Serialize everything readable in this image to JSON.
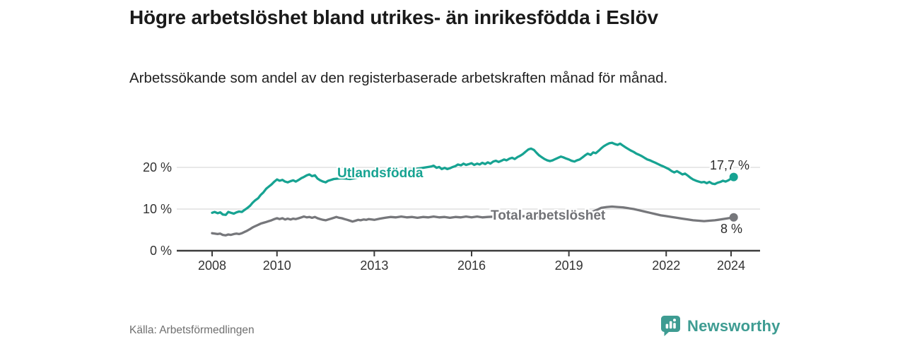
{
  "header": {
    "title": "Högre arbetslöshet bland utrikes- än inrikesfödda i Eslöv",
    "subtitle": "Arbetssökande som andel av den registerbaserade arbetskraften månad för månad."
  },
  "footer": {
    "source": "Källa: Arbetsförmedlingen",
    "brand_name": "Newsworthy",
    "brand_icon": "bar-chart-speech-bubble-icon"
  },
  "colors": {
    "foreign_born_line": "#17a392",
    "total_line": "#76777b",
    "grid": "#d9d9d9",
    "axis": "#3c3c3c",
    "tick_text": "#333333",
    "end_label_text": "#2b2b2b",
    "title_text": "#1a1a1a",
    "source_text": "#6f6f6f",
    "brand_teal": "#3e9c92"
  },
  "chart_data": {
    "type": "line",
    "title": "Högre arbetslöshet bland utrikes- än inrikesfödda i Eslöv",
    "xlabel": "",
    "ylabel": "",
    "grid": "horizontal-only",
    "legend_position": "inline-labels-on-lines",
    "xlim": [
      2006.9,
      2024.9
    ],
    "ylim": [
      0,
      28
    ],
    "x_ticks": [
      2008,
      2010,
      2013,
      2016,
      2019,
      2022,
      2024
    ],
    "y_ticks": [
      {
        "value": 0,
        "label": "0 %"
      },
      {
        "value": 10,
        "label": "10 %"
      },
      {
        "value": 20,
        "label": "20 %"
      }
    ],
    "unit": "%",
    "series": [
      {
        "name": "Utlandsfödda",
        "end_label": "17,7 %",
        "end_value": 17.7,
        "color": "#17a392",
        "points": [
          [
            2008.0,
            9.1
          ],
          [
            2008.08,
            9.3
          ],
          [
            2008.17,
            9.0
          ],
          [
            2008.25,
            9.2
          ],
          [
            2008.33,
            8.7
          ],
          [
            2008.42,
            8.6
          ],
          [
            2008.5,
            9.3
          ],
          [
            2008.58,
            9.1
          ],
          [
            2008.67,
            8.9
          ],
          [
            2008.75,
            9.2
          ],
          [
            2008.83,
            9.4
          ],
          [
            2008.92,
            9.3
          ],
          [
            2009.0,
            9.8
          ],
          [
            2009.08,
            10.2
          ],
          [
            2009.17,
            10.8
          ],
          [
            2009.25,
            11.5
          ],
          [
            2009.33,
            12.1
          ],
          [
            2009.42,
            12.6
          ],
          [
            2009.5,
            13.4
          ],
          [
            2009.58,
            14.0
          ],
          [
            2009.67,
            14.9
          ],
          [
            2009.75,
            15.4
          ],
          [
            2009.83,
            15.9
          ],
          [
            2009.92,
            16.6
          ],
          [
            2010.0,
            17.1
          ],
          [
            2010.08,
            16.8
          ],
          [
            2010.17,
            17.0
          ],
          [
            2010.25,
            16.6
          ],
          [
            2010.33,
            16.4
          ],
          [
            2010.42,
            16.7
          ],
          [
            2010.5,
            16.9
          ],
          [
            2010.58,
            16.6
          ],
          [
            2010.67,
            17.0
          ],
          [
            2010.75,
            17.4
          ],
          [
            2010.83,
            17.7
          ],
          [
            2010.92,
            18.1
          ],
          [
            2011.0,
            18.3
          ],
          [
            2011.08,
            17.9
          ],
          [
            2011.17,
            18.1
          ],
          [
            2011.25,
            17.3
          ],
          [
            2011.33,
            16.9
          ],
          [
            2011.42,
            16.6
          ],
          [
            2011.5,
            16.4
          ],
          [
            2011.58,
            16.8
          ],
          [
            2011.67,
            17.0
          ],
          [
            2011.75,
            17.2
          ],
          [
            2012.0,
            17.4
          ],
          [
            2012.25,
            17.2
          ],
          [
            2012.5,
            17.6
          ],
          [
            2012.75,
            17.9
          ],
          [
            2013.0,
            18.2
          ],
          [
            2013.25,
            18.5
          ],
          [
            2013.5,
            18.8
          ],
          [
            2013.75,
            19.1
          ],
          [
            2014.0,
            19.4
          ],
          [
            2014.25,
            19.6
          ],
          [
            2014.5,
            19.9
          ],
          [
            2014.75,
            20.2
          ],
          [
            2014.83,
            20.4
          ],
          [
            2014.92,
            19.9
          ],
          [
            2015.0,
            20.1
          ],
          [
            2015.08,
            19.6
          ],
          [
            2015.17,
            19.9
          ],
          [
            2015.25,
            19.6
          ],
          [
            2015.33,
            19.8
          ],
          [
            2015.42,
            20.1
          ],
          [
            2015.5,
            20.3
          ],
          [
            2015.58,
            20.7
          ],
          [
            2015.67,
            20.5
          ],
          [
            2015.75,
            20.9
          ],
          [
            2015.83,
            20.6
          ],
          [
            2015.92,
            20.8
          ],
          [
            2016.0,
            21.0
          ],
          [
            2016.08,
            20.6
          ],
          [
            2016.17,
            20.9
          ],
          [
            2016.25,
            20.7
          ],
          [
            2016.33,
            21.1
          ],
          [
            2016.42,
            20.8
          ],
          [
            2016.5,
            21.2
          ],
          [
            2016.58,
            20.9
          ],
          [
            2016.67,
            21.4
          ],
          [
            2016.75,
            21.6
          ],
          [
            2016.83,
            21.3
          ],
          [
            2016.92,
            21.6
          ],
          [
            2017.0,
            21.9
          ],
          [
            2017.08,
            21.7
          ],
          [
            2017.17,
            22.1
          ],
          [
            2017.25,
            22.3
          ],
          [
            2017.33,
            22.0
          ],
          [
            2017.42,
            22.5
          ],
          [
            2017.5,
            22.8
          ],
          [
            2017.58,
            23.2
          ],
          [
            2017.67,
            23.8
          ],
          [
            2017.75,
            24.3
          ],
          [
            2017.83,
            24.5
          ],
          [
            2017.92,
            24.2
          ],
          [
            2018.0,
            23.5
          ],
          [
            2018.08,
            22.9
          ],
          [
            2018.17,
            22.4
          ],
          [
            2018.25,
            22.0
          ],
          [
            2018.33,
            21.7
          ],
          [
            2018.42,
            21.5
          ],
          [
            2018.5,
            21.7
          ],
          [
            2018.58,
            22.0
          ],
          [
            2018.67,
            22.3
          ],
          [
            2018.75,
            22.6
          ],
          [
            2018.83,
            22.4
          ],
          [
            2018.92,
            22.1
          ],
          [
            2019.0,
            21.9
          ],
          [
            2019.08,
            21.6
          ],
          [
            2019.17,
            21.4
          ],
          [
            2019.25,
            21.7
          ],
          [
            2019.33,
            21.9
          ],
          [
            2019.42,
            22.4
          ],
          [
            2019.5,
            22.9
          ],
          [
            2019.58,
            23.3
          ],
          [
            2019.67,
            23.0
          ],
          [
            2019.75,
            23.6
          ],
          [
            2019.83,
            23.4
          ],
          [
            2019.92,
            24.0
          ],
          [
            2020.0,
            24.6
          ],
          [
            2020.08,
            25.1
          ],
          [
            2020.17,
            25.5
          ],
          [
            2020.25,
            25.8
          ],
          [
            2020.33,
            25.9
          ],
          [
            2020.42,
            25.6
          ],
          [
            2020.5,
            25.4
          ],
          [
            2020.58,
            25.7
          ],
          [
            2020.67,
            25.2
          ],
          [
            2020.75,
            24.8
          ],
          [
            2020.83,
            24.4
          ],
          [
            2020.92,
            24.0
          ],
          [
            2021.0,
            23.7
          ],
          [
            2021.08,
            23.3
          ],
          [
            2021.17,
            23.0
          ],
          [
            2021.25,
            22.7
          ],
          [
            2021.33,
            22.3
          ],
          [
            2021.42,
            21.9
          ],
          [
            2021.5,
            21.7
          ],
          [
            2021.58,
            21.4
          ],
          [
            2021.67,
            21.1
          ],
          [
            2021.75,
            20.8
          ],
          [
            2021.83,
            20.5
          ],
          [
            2021.92,
            20.2
          ],
          [
            2022.0,
            19.9
          ],
          [
            2022.08,
            19.6
          ],
          [
            2022.17,
            19.1
          ],
          [
            2022.25,
            18.8
          ],
          [
            2022.33,
            19.1
          ],
          [
            2022.42,
            18.7
          ],
          [
            2022.5,
            18.3
          ],
          [
            2022.58,
            18.5
          ],
          [
            2022.67,
            18.0
          ],
          [
            2022.75,
            17.5
          ],
          [
            2022.83,
            17.1
          ],
          [
            2022.92,
            16.8
          ],
          [
            2023.0,
            16.6
          ],
          [
            2023.08,
            16.4
          ],
          [
            2023.17,
            16.5
          ],
          [
            2023.25,
            16.2
          ],
          [
            2023.33,
            16.5
          ],
          [
            2023.42,
            16.1
          ],
          [
            2023.5,
            16.0
          ],
          [
            2023.58,
            16.3
          ],
          [
            2023.67,
            16.5
          ],
          [
            2023.75,
            16.8
          ],
          [
            2023.83,
            16.6
          ],
          [
            2023.92,
            16.9
          ],
          [
            2024.0,
            17.3
          ],
          [
            2024.08,
            17.7
          ]
        ]
      },
      {
        "name": "Total arbetslöshet",
        "end_label": "8 %",
        "end_value": 8.0,
        "color": "#76777b",
        "points": [
          [
            2008.0,
            4.2
          ],
          [
            2008.08,
            4.1
          ],
          [
            2008.17,
            4.0
          ],
          [
            2008.25,
            4.1
          ],
          [
            2008.33,
            3.8
          ],
          [
            2008.42,
            3.7
          ],
          [
            2008.5,
            3.9
          ],
          [
            2008.58,
            3.8
          ],
          [
            2008.67,
            4.0
          ],
          [
            2008.75,
            4.1
          ],
          [
            2008.83,
            4.0
          ],
          [
            2008.92,
            4.2
          ],
          [
            2009.0,
            4.5
          ],
          [
            2009.08,
            4.8
          ],
          [
            2009.17,
            5.2
          ],
          [
            2009.25,
            5.6
          ],
          [
            2009.33,
            5.9
          ],
          [
            2009.42,
            6.2
          ],
          [
            2009.5,
            6.5
          ],
          [
            2009.58,
            6.7
          ],
          [
            2009.67,
            6.9
          ],
          [
            2009.75,
            7.1
          ],
          [
            2009.83,
            7.3
          ],
          [
            2009.92,
            7.6
          ],
          [
            2010.0,
            7.8
          ],
          [
            2010.08,
            7.6
          ],
          [
            2010.17,
            7.8
          ],
          [
            2010.25,
            7.5
          ],
          [
            2010.33,
            7.7
          ],
          [
            2010.42,
            7.5
          ],
          [
            2010.5,
            7.7
          ],
          [
            2010.58,
            7.6
          ],
          [
            2010.67,
            7.8
          ],
          [
            2010.75,
            8.0
          ],
          [
            2010.83,
            8.2
          ],
          [
            2010.92,
            8.0
          ],
          [
            2011.0,
            8.1
          ],
          [
            2011.08,
            7.9
          ],
          [
            2011.17,
            8.1
          ],
          [
            2011.25,
            7.8
          ],
          [
            2011.33,
            7.6
          ],
          [
            2011.42,
            7.4
          ],
          [
            2011.5,
            7.3
          ],
          [
            2011.58,
            7.5
          ],
          [
            2011.67,
            7.7
          ],
          [
            2011.75,
            7.9
          ],
          [
            2011.83,
            8.1
          ],
          [
            2011.92,
            7.9
          ],
          [
            2012.0,
            7.8
          ],
          [
            2012.08,
            7.6
          ],
          [
            2012.17,
            7.4
          ],
          [
            2012.25,
            7.2
          ],
          [
            2012.33,
            7.0
          ],
          [
            2012.42,
            7.2
          ],
          [
            2012.5,
            7.4
          ],
          [
            2012.58,
            7.3
          ],
          [
            2012.67,
            7.5
          ],
          [
            2012.75,
            7.4
          ],
          [
            2012.83,
            7.6
          ],
          [
            2012.92,
            7.5
          ],
          [
            2013.0,
            7.4
          ],
          [
            2013.17,
            7.7
          ],
          [
            2013.33,
            7.9
          ],
          [
            2013.5,
            8.1
          ],
          [
            2013.67,
            8.0
          ],
          [
            2013.83,
            8.2
          ],
          [
            2014.0,
            8.0
          ],
          [
            2014.17,
            8.1
          ],
          [
            2014.33,
            7.9
          ],
          [
            2014.5,
            8.1
          ],
          [
            2014.67,
            8.0
          ],
          [
            2014.83,
            8.2
          ],
          [
            2015.0,
            8.0
          ],
          [
            2015.17,
            8.1
          ],
          [
            2015.33,
            7.9
          ],
          [
            2015.5,
            8.1
          ],
          [
            2015.67,
            8.0
          ],
          [
            2015.83,
            8.2
          ],
          [
            2016.0,
            8.0
          ],
          [
            2016.17,
            8.2
          ],
          [
            2016.33,
            8.0
          ],
          [
            2016.5,
            8.1
          ],
          [
            2016.75,
            8.2
          ],
          [
            2017.0,
            8.1
          ],
          [
            2017.25,
            8.3
          ],
          [
            2017.5,
            8.2
          ],
          [
            2017.75,
            8.4
          ],
          [
            2018.0,
            8.3
          ],
          [
            2018.25,
            8.2
          ],
          [
            2018.5,
            8.4
          ],
          [
            2018.75,
            8.3
          ],
          [
            2019.0,
            8.4
          ],
          [
            2019.25,
            8.6
          ],
          [
            2019.5,
            8.9
          ],
          [
            2019.75,
            9.4
          ],
          [
            2019.92,
            10.0
          ],
          [
            2020.0,
            10.3
          ],
          [
            2020.17,
            10.5
          ],
          [
            2020.33,
            10.6
          ],
          [
            2020.5,
            10.5
          ],
          [
            2020.67,
            10.4
          ],
          [
            2020.83,
            10.2
          ],
          [
            2021.0,
            10.0
          ],
          [
            2021.17,
            9.7
          ],
          [
            2021.33,
            9.4
          ],
          [
            2021.5,
            9.1
          ],
          [
            2021.67,
            8.8
          ],
          [
            2021.83,
            8.5
          ],
          [
            2022.0,
            8.3
          ],
          [
            2022.17,
            8.1
          ],
          [
            2022.33,
            7.9
          ],
          [
            2022.5,
            7.7
          ],
          [
            2022.67,
            7.5
          ],
          [
            2022.83,
            7.3
          ],
          [
            2023.0,
            7.2
          ],
          [
            2023.17,
            7.1
          ],
          [
            2023.33,
            7.2
          ],
          [
            2023.5,
            7.3
          ],
          [
            2023.67,
            7.5
          ],
          [
            2023.83,
            7.7
          ],
          [
            2024.0,
            7.9
          ],
          [
            2024.08,
            8.0
          ]
        ]
      }
    ]
  }
}
